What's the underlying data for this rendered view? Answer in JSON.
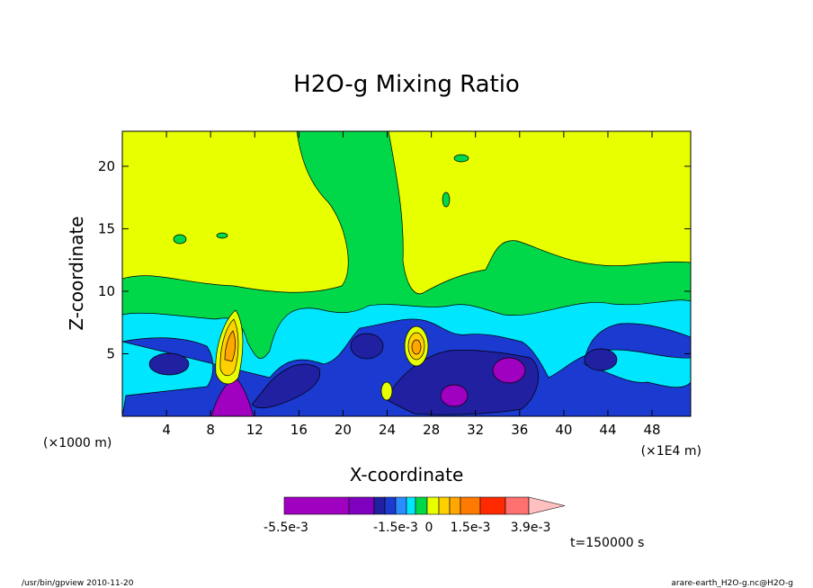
{
  "chart_data": {
    "type": "heatmap",
    "title": "H2O-g Mixing Ratio",
    "xlabel": "X-coordinate",
    "ylabel": "Z-coordinate",
    "x_unit_left": "(×1000 m)",
    "x_unit_right": "(×1E4 m)",
    "xticks": [
      "4",
      "8",
      "12",
      "16",
      "20",
      "24",
      "28",
      "32",
      "36",
      "40",
      "44",
      "48"
    ],
    "yticks": [
      "5",
      "10",
      "15",
      "20"
    ],
    "xlim": [
      0,
      51.5
    ],
    "ylim": [
      0,
      22.8
    ],
    "colorbar": {
      "levels_shown": [
        "-5.5e-3",
        "-1.5e-3",
        "0",
        "1.5e-3",
        "3.9e-3"
      ],
      "colors": [
        "#a000c0",
        "#8000c0",
        "#2020a0",
        "#1a3ad0",
        "#2a8cff",
        "#00e6ff",
        "#00d84a",
        "#e8ff00",
        "#ffd000",
        "#ffa600",
        "#ff7a00",
        "#ff2a00",
        "#ff7070",
        "#ffc0c0"
      ]
    },
    "time_label": "t=150000 s",
    "footer_left": "/usr/bin/gpview   2010-11-20",
    "footer_right": "arare-earth_H2O-g.nc@H2O-g"
  }
}
